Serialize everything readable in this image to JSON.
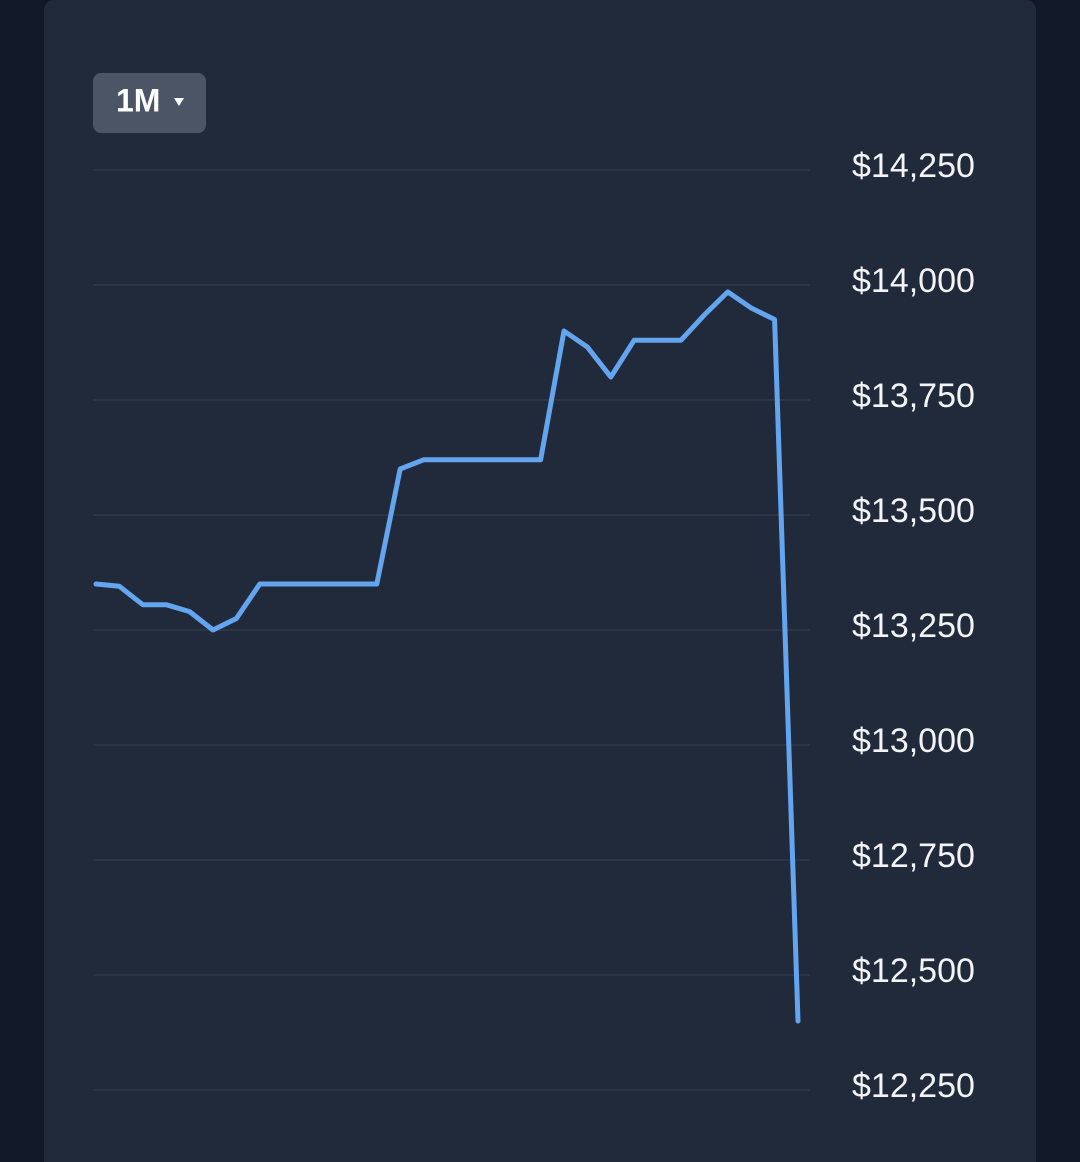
{
  "chart_data": {
    "type": "line",
    "range_button": "1M",
    "values": [
      13350,
      13345,
      13305,
      13305,
      13290,
      13250,
      13275,
      13350,
      13350,
      13350,
      13350,
      13350,
      13350,
      13600,
      13620,
      13620,
      13620,
      13620,
      13620,
      13620,
      13900,
      13865,
      13800,
      13880,
      13880,
      13880,
      13935,
      13985,
      13950,
      13925,
      12400
    ],
    "color": "#64a5f0",
    "ylim": [
      12250,
      14250
    ],
    "yticks": [
      {
        "value": 12250,
        "label": "$12,250"
      },
      {
        "value": 12500,
        "label": "$12,500"
      },
      {
        "value": 12750,
        "label": "$12,750"
      },
      {
        "value": 13000,
        "label": "$13,000"
      },
      {
        "value": 13250,
        "label": "$13,250"
      },
      {
        "value": 13500,
        "label": "$13,500"
      },
      {
        "value": 13750,
        "label": "$13,750"
      },
      {
        "value": 14000,
        "label": "$14,000"
      },
      {
        "value": 14250,
        "label": "$14,250"
      }
    ],
    "grid": true
  }
}
